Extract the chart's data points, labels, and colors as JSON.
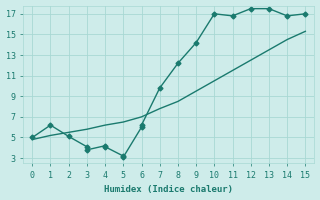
{
  "xlabel": "Humidex (Indice chaleur)",
  "ylabel": "",
  "bg_color": "#ceecea",
  "grid_color": "#a8d8d4",
  "line_color": "#1a7a6e",
  "xlim": [
    -0.5,
    15.5
  ],
  "ylim": [
    2.5,
    17.8
  ],
  "xticks": [
    0,
    1,
    2,
    3,
    4,
    5,
    6,
    7,
    8,
    9,
    10,
    11,
    12,
    13,
    14,
    15
  ],
  "yticks": [
    3,
    5,
    7,
    9,
    11,
    13,
    15,
    17
  ],
  "line1_x": [
    0,
    1,
    2,
    3,
    3,
    4,
    4,
    5,
    5,
    6,
    6,
    7,
    8,
    9,
    10,
    11,
    12,
    13,
    14,
    15
  ],
  "line1_y": [
    5.0,
    6.2,
    5.1,
    4.1,
    3.8,
    4.2,
    4.1,
    3.2,
    3.1,
    6.0,
    6.2,
    9.8,
    12.2,
    14.2,
    17.0,
    16.8,
    17.5,
    17.5,
    16.8,
    17.0
  ],
  "line2_x": [
    0,
    1,
    2,
    3,
    4,
    5,
    6,
    7,
    8,
    9,
    10,
    11,
    12,
    13,
    14,
    15
  ],
  "line2_y": [
    4.8,
    5.2,
    5.5,
    5.8,
    6.2,
    6.5,
    7.0,
    7.8,
    8.5,
    9.5,
    10.5,
    11.5,
    12.5,
    13.5,
    14.5,
    15.3
  ],
  "marker": "D",
  "markersize": 2.5,
  "linewidth": 1.0
}
